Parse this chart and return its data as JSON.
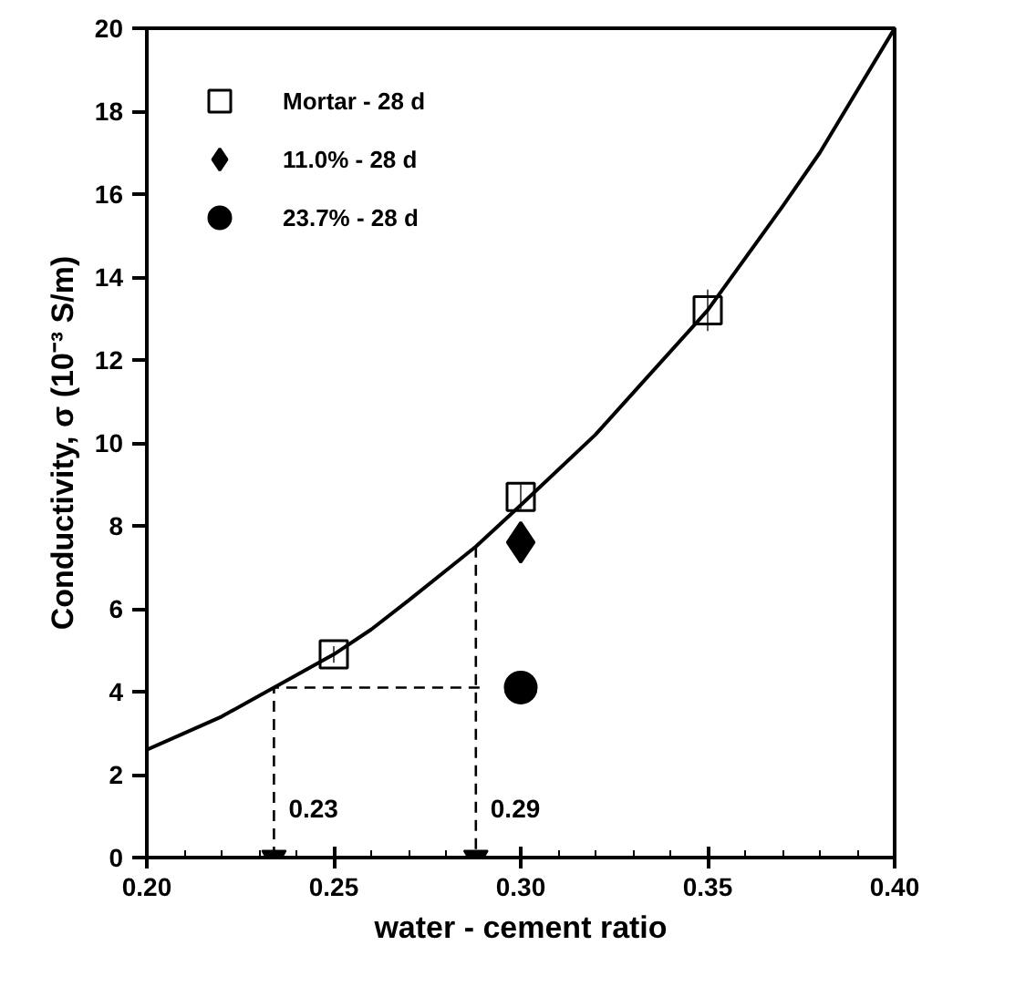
{
  "chart_data": {
    "type": "scatter",
    "xlabel": "water - cement ratio",
    "ylabel": "Conductivity, σ (10⁻³ S/m)",
    "xlim": [
      0.2,
      0.4
    ],
    "xticks": [
      {
        "value": 0.2,
        "label": "0.20"
      },
      {
        "value": 0.25,
        "label": "0.25"
      },
      {
        "value": 0.3,
        "label": "0.30"
      },
      {
        "value": 0.35,
        "label": "0.35"
      },
      {
        "value": 0.4,
        "label": "0.40"
      }
    ],
    "ylim": [
      0,
      20
    ],
    "yticks": [
      0,
      2,
      4,
      6,
      8,
      10,
      12,
      14,
      16,
      18,
      20
    ],
    "grid": false,
    "legend": "top left",
    "series": [
      {
        "type": "line",
        "color": "#000000",
        "line_style": "solid",
        "x": [
          0.2,
          0.22,
          0.234,
          0.25,
          0.26,
          0.27,
          0.288,
          0.3,
          0.32,
          0.33,
          0.35,
          0.37,
          0.38,
          0.4
        ],
        "values": [
          2.6,
          3.4,
          4.1,
          4.9,
          5.5,
          6.2,
          7.5,
          8.5,
          10.2,
          11.2,
          13.2,
          15.7,
          17.0,
          20.0
        ]
      },
      {
        "type": "line",
        "color": "#000000",
        "line_style": "dashed",
        "x": [
          0.234,
          0.234,
          0.29
        ],
        "values": [
          0,
          4.1,
          4.1
        ]
      },
      {
        "type": "line",
        "color": "#000000",
        "line_style": "dashed",
        "x": [
          0.288,
          0.288
        ],
        "values": [
          7.5,
          0
        ]
      },
      {
        "name": "Mortar - 28 d",
        "marker": "square",
        "color": "#000000",
        "x": [
          0.25,
          0.3,
          0.35
        ],
        "values": [
          4.9,
          8.7,
          13.2
        ],
        "errors": [
          0.2,
          0.3,
          0.5
        ]
      },
      {
        "name": "11.0% - 28 d",
        "marker": "diamond",
        "color": "#000000",
        "x": [
          0.3
        ],
        "values": [
          7.6
        ]
      },
      {
        "name": "23.7% - 28 d",
        "marker": "circle",
        "color": "#000000",
        "x": [
          0.3
        ],
        "values": [
          4.1
        ]
      }
    ],
    "annotations": [
      {
        "text": "0.23",
        "x": 0.234,
        "y": 0
      },
      {
        "text": "0.29",
        "x": 0.288,
        "y": 0
      }
    ]
  }
}
